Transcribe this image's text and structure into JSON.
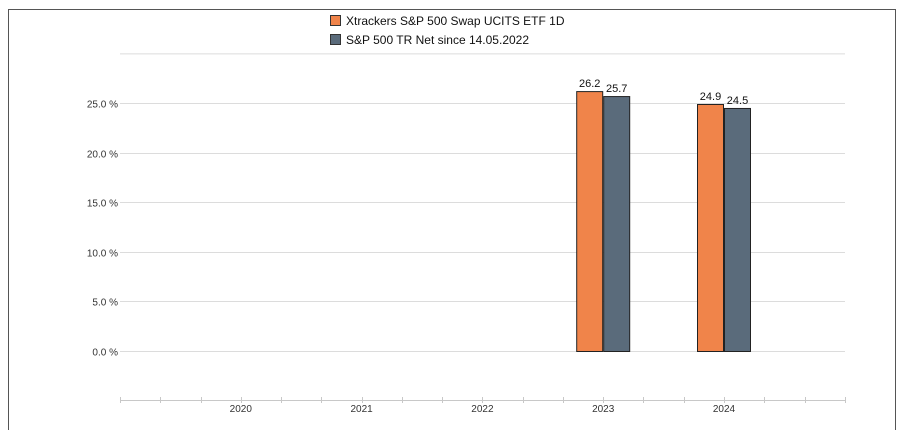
{
  "colors": {
    "series1": "#f0844a",
    "series2": "#5a6b7b",
    "grid": "#dcdcdc",
    "axis": "#c8c8c8",
    "bar_stroke": "#222222",
    "text": "#111111"
  },
  "legend": {
    "items": [
      {
        "label": "Xtrackers S&P 500 Swap UCITS ETF 1D",
        "color": "#f0844a"
      },
      {
        "label": "S&P 500 TR Net since 14.05.2022",
        "color": "#5a6b7b"
      }
    ]
  },
  "chart_data": {
    "type": "bar",
    "categories": [
      "2020",
      "2021",
      "2022",
      "2023",
      "2024"
    ],
    "series": [
      {
        "name": "Xtrackers S&P 500 Swap UCITS ETF 1D",
        "values": [
          null,
          null,
          null,
          26.2,
          24.9
        ]
      },
      {
        "name": "S&P 500 TR Net since 14.05.2022",
        "values": [
          null,
          null,
          null,
          25.7,
          24.5
        ]
      }
    ],
    "y_ticks": [
      "0.0 %",
      "5.0 %",
      "10.0 %",
      "15.0 %",
      "20.0 %",
      "25.0 %"
    ],
    "data_labels": [
      [
        null,
        null,
        null,
        "26.2",
        "24.9"
      ],
      [
        null,
        null,
        null,
        "25.7",
        "24.5"
      ]
    ],
    "ylim": [
      0,
      30
    ],
    "grid": true,
    "legend_position": "top-center",
    "title": "",
    "xlabel": "",
    "ylabel": ""
  }
}
